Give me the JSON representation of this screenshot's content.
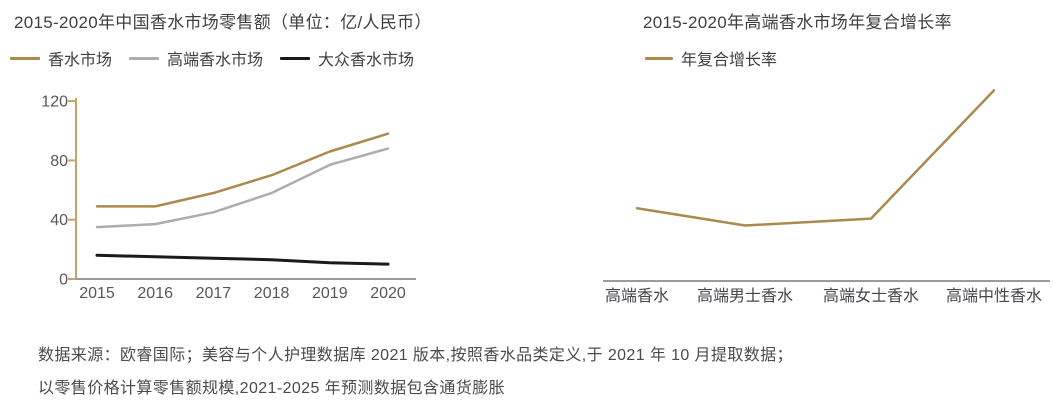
{
  "page": {
    "background": "#FFFFFF"
  },
  "colors": {
    "brand_gold": "#AA8A4E",
    "axis_gold": "#C4A26B",
    "baseline_gray": "#9B9B9B",
    "series_gray": "#ADADAD",
    "series_black": "#1C1917",
    "text_dark": "#3F3F42",
    "text_gray": "#56575B"
  },
  "footer": {
    "line1": "数据来源：欧睿国际；美容与个人护理数据库 2021 版本,按照香水品类定义,于 2021 年 10 月提取数据；",
    "line2": "以零售价格计算零售额规模,2021-2025 年预测数据包含通货膨胀"
  },
  "chart_data": [
    {
      "type": "line",
      "title": "2015-2020年中国香水市场零售额（单位：亿/人民币）",
      "categories": [
        "2015",
        "2016",
        "2017",
        "2018",
        "2019",
        "2020"
      ],
      "series": [
        {
          "name": "香水市场",
          "color": "#AA8A4E",
          "values": [
            49,
            49,
            58,
            70,
            86,
            98
          ]
        },
        {
          "name": "高端香水市场",
          "color": "#ADADAD",
          "values": [
            35,
            37,
            45,
            58,
            77,
            88
          ]
        },
        {
          "name": "大众香水市场",
          "color": "#1C1917",
          "values": [
            16,
            15,
            14,
            13,
            11,
            10
          ]
        }
      ],
      "xlabel": "",
      "ylabel": "",
      "yticks": [
        0,
        40,
        80,
        120
      ],
      "ylim": [
        0,
        120
      ],
      "axis_color": "#C4A26B",
      "baseline_color": "#9B9B9B",
      "grid": false,
      "legend_position": "top-left"
    },
    {
      "type": "line",
      "title": "2015-2020年高端香水市场年复合增长率",
      "categories": [
        "高端香水",
        "高端男士香水",
        "高端女士香水",
        "高端中性香水"
      ],
      "series": [
        {
          "name": "年复合增长率",
          "color": "#AA8A4E",
          "values": [
            21,
            16,
            18,
            55
          ]
        }
      ],
      "xlabel": "",
      "ylabel": "",
      "yticks": [],
      "ylim": [
        0,
        60
      ],
      "y_axis_hidden": true,
      "values_estimated": true,
      "baseline_color": "#9B9B9B",
      "grid": false,
      "legend_position": "top-left"
    }
  ]
}
